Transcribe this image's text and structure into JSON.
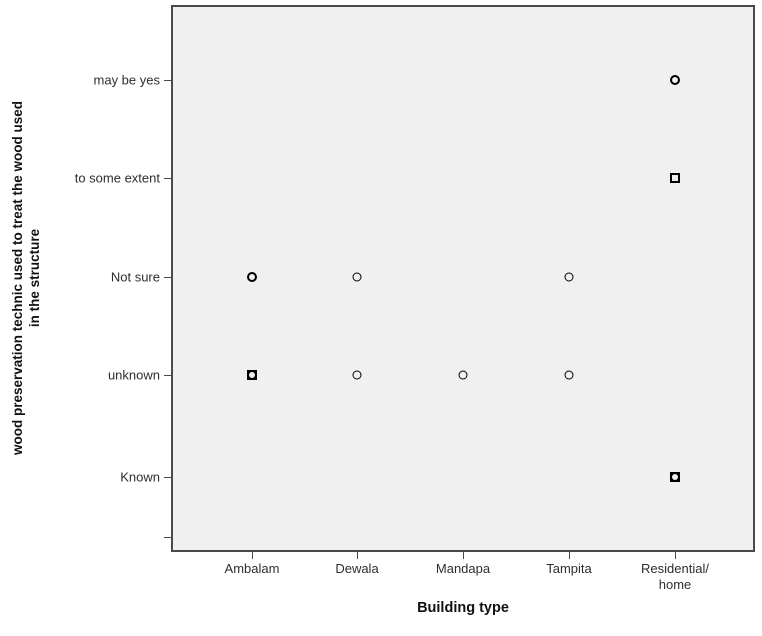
{
  "chart_data": {
    "type": "scatter",
    "title": "",
    "xlabel": "Building type",
    "ylabel_line1": "wood preservation technic used to treat the wood used",
    "ylabel_line2": "in the structure",
    "x_categories": [
      "Ambalam",
      "Dewala",
      "Mandapa",
      "Tampita",
      "Residential/\nhome"
    ],
    "y_categories": [
      "may be yes",
      "to some extent",
      "Not sure",
      "unknown",
      "Known"
    ],
    "legend": null,
    "grid": false,
    "points": [
      {
        "x": "Residential/\nhome",
        "y": "may be yes",
        "marker": "circle-bold"
      },
      {
        "x": "Residential/\nhome",
        "y": "to some extent",
        "marker": "square-bold"
      },
      {
        "x": "Ambalam",
        "y": "Not sure",
        "marker": "circle-bold"
      },
      {
        "x": "Dewala",
        "y": "Not sure",
        "marker": "circle"
      },
      {
        "x": "Tampita",
        "y": "Not sure",
        "marker": "circle"
      },
      {
        "x": "Ambalam",
        "y": "unknown",
        "marker": "circle-square-bold"
      },
      {
        "x": "Dewala",
        "y": "unknown",
        "marker": "circle"
      },
      {
        "x": "Mandapa",
        "y": "unknown",
        "marker": "circle"
      },
      {
        "x": "Tampita",
        "y": "unknown",
        "marker": "circle"
      },
      {
        "x": "Residential/\nhome",
        "y": "Known",
        "marker": "circle-square-bold"
      }
    ],
    "colors": {
      "plot_background": "#f0f0f0",
      "axis_border": "#4a4a4a",
      "marker": "#000000",
      "tick_text": "#2e2e2e",
      "title_text": "#111111",
      "page_background": "#ffffff"
    }
  }
}
